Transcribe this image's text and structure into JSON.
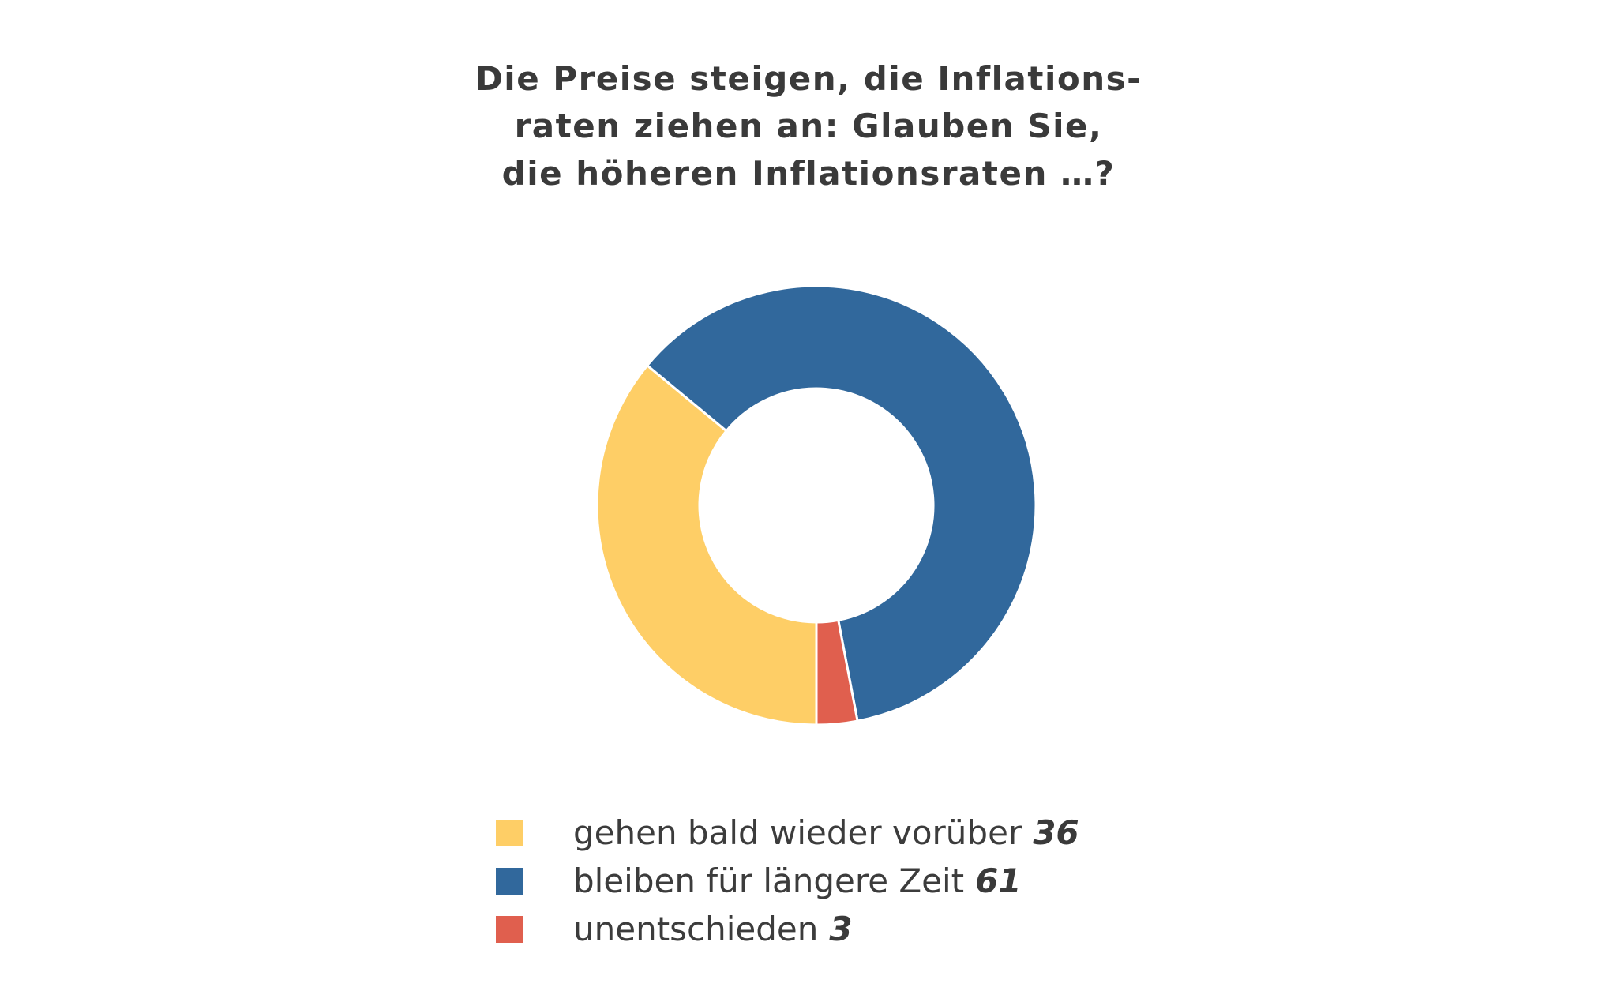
{
  "title_lines": [
    "Die Preise steigen, die Inflations-",
    "raten ziehen an: Glauben Sie,",
    "die höheren Inflationsraten …?"
  ],
  "chart_data": {
    "type": "pie",
    "variant": "donut",
    "title": "Die Preise steigen, die Inflationsraten ziehen an: Glauben Sie, die höheren Inflationsraten …?",
    "categories": [
      "gehen bald wieder vorüber",
      "bleiben für längere Zeit",
      "unentschieden"
    ],
    "values": [
      36,
      61,
      3
    ],
    "colors": [
      "#FECE66",
      "#31689C",
      "#E05F4E"
    ],
    "legend": "bottom",
    "legend_entries": [
      {
        "label": "gehen bald wieder vorüber",
        "value": "36",
        "color": "#FECE66"
      },
      {
        "label": "bleiben für längere Zeit",
        "value": "61",
        "color": "#31689C"
      },
      {
        "label": "unentschieden",
        "value": "3",
        "color": "#E05F4E"
      }
    ]
  }
}
